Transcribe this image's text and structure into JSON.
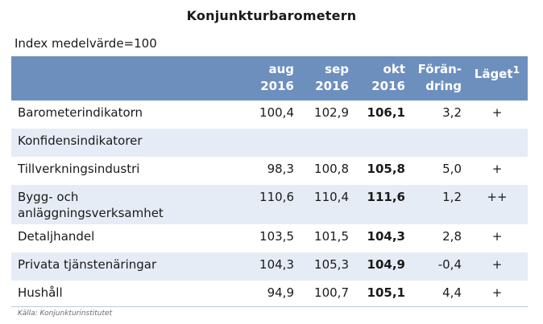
{
  "title": "Konjunkturbarometern",
  "subtitle": "Index medelvärde=100",
  "table": {
    "headers": {
      "aug": [
        "aug",
        "2016"
      ],
      "sep": [
        "sep",
        "2016"
      ],
      "okt": [
        "okt",
        "2016"
      ],
      "forandring": [
        "Förän-",
        "dring"
      ],
      "laget": "Läget",
      "laget_sup": "1"
    },
    "rows": [
      {
        "label": [
          "Barometerindikatorn"
        ],
        "aug": "100,4",
        "sep": "102,9",
        "okt": "106,1",
        "forandring": "3,2",
        "laget": "+"
      },
      {
        "label": [
          "Konfidensindikatorer"
        ],
        "aug": "",
        "sep": "",
        "okt": "",
        "forandring": "",
        "laget": ""
      },
      {
        "label": [
          "Tillverkningsindustri"
        ],
        "aug": "98,3",
        "sep": "100,8",
        "okt": "105,8",
        "forandring": "5,0",
        "laget": "+"
      },
      {
        "label": [
          "Bygg- och",
          "anläggningsverksamhet"
        ],
        "aug": "110,6",
        "sep": "110,4",
        "okt": "111,6",
        "forandring": "1,2",
        "laget": "++"
      },
      {
        "label": [
          "Detaljhandel"
        ],
        "aug": "103,5",
        "sep": "101,5",
        "okt": "104,3",
        "forandring": "2,8",
        "laget": "+"
      },
      {
        "label": [
          "Privata tjänstenäringar"
        ],
        "aug": "104,3",
        "sep": "105,3",
        "okt": "104,9",
        "forandring": "-0,4",
        "laget": "+"
      },
      {
        "label": [
          "Hushåll"
        ],
        "aug": "94,9",
        "sep": "100,7",
        "okt": "105,1",
        "forandring": "4,4",
        "laget": "+"
      }
    ]
  },
  "source": "Källa: Konjunkturinstitutet",
  "colors": {
    "header_bg": "#6d8fbe",
    "alt_row_bg": "#e6ecf5"
  }
}
